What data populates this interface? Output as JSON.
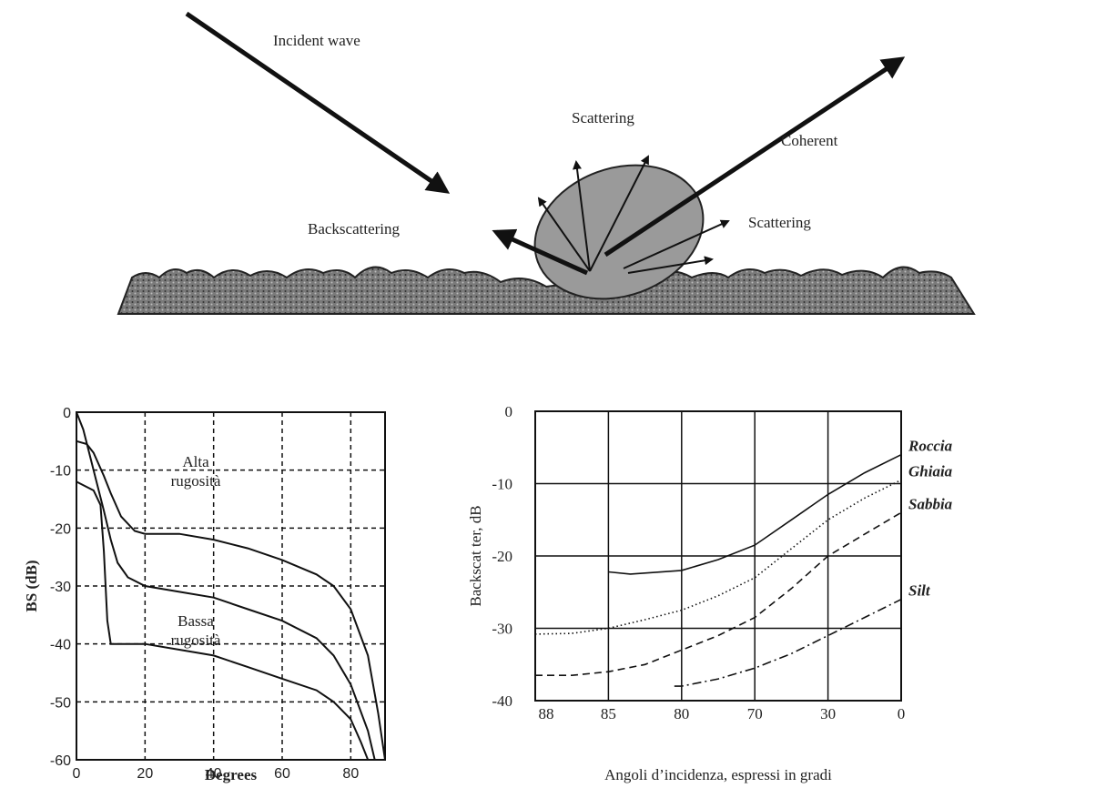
{
  "diagram": {
    "labels": [
      "Incident wave",
      "Scattering",
      "Coherent",
      "Backscattering",
      "Scattering"
    ]
  },
  "chart_data": [
    {
      "type": "line",
      "xlabel": "Degrees",
      "ylabel": "BS (dB)",
      "xlim": [
        0,
        90
      ],
      "xticks": [
        0,
        20,
        40,
        60,
        80
      ],
      "ylim": [
        -60,
        0
      ],
      "yticks": [
        0,
        -10,
        -20,
        -30,
        -40,
        -50,
        -60
      ],
      "grid": "dashed",
      "annotations": [
        [
          "Alta",
          "rugosità"
        ],
        [
          "Bassa",
          "rugosità"
        ]
      ],
      "series": [
        {
          "color": "#111111",
          "dash": "solid",
          "x": [
            0,
            2,
            5,
            8,
            10,
            12,
            15,
            20,
            30,
            40,
            50,
            60,
            70,
            75,
            80,
            85,
            87
          ],
          "values": [
            0,
            -3,
            -10,
            -17,
            -22,
            -26,
            -28.5,
            -30,
            -31,
            -32,
            -34,
            -36,
            -39,
            -42,
            -47,
            -55,
            -60
          ]
        },
        {
          "color": "#111111",
          "dash": "solid",
          "x": [
            0,
            3,
            5,
            8,
            10,
            13,
            17,
            20,
            30,
            40,
            50,
            60,
            70,
            75,
            80,
            85,
            88,
            90
          ],
          "values": [
            -5,
            -5.5,
            -7,
            -11,
            -14,
            -18,
            -20.5,
            -21,
            -21,
            -22,
            -23.5,
            -25.5,
            -28,
            -30,
            -34,
            -42,
            -52,
            -60
          ]
        },
        {
          "color": "#111111",
          "dash": "solid",
          "x": [
            0,
            5,
            7,
            8,
            9,
            10,
            20,
            30,
            40,
            50,
            60,
            70,
            75,
            80,
            83,
            85
          ],
          "values": [
            -12,
            -13.5,
            -16,
            -24,
            -36,
            -40,
            -40,
            -41,
            -42,
            -44,
            -46,
            -48,
            -50,
            -53,
            -57,
            -60
          ]
        }
      ]
    },
    {
      "type": "line",
      "xlabel": "Angoli d’incidenza, espressi in gradi",
      "ylabel": "Backscat ter, dB",
      "xlim": [
        88,
        0
      ],
      "xticks": [
        88,
        85,
        80,
        70,
        30,
        0
      ],
      "xscale": "piecewise",
      "ylim": [
        -40,
        0
      ],
      "yticks": [
        0,
        -10,
        -20,
        -30,
        -40
      ],
      "grid": "solid",
      "series": [
        {
          "name": "Roccia",
          "color": "#111111",
          "dash": "solid",
          "x": [
            85,
            83.5,
            80,
            75,
            70,
            50,
            30,
            15,
            0
          ],
          "values": [
            -22.2,
            -22.5,
            -22,
            -20.5,
            -18.5,
            -15,
            -11.5,
            -8.5,
            -6
          ]
        },
        {
          "name": "Ghiaia",
          "color": "#111111",
          "dash": "dotted",
          "x": [
            88,
            86.5,
            85,
            82.5,
            80,
            75,
            70,
            50,
            30,
            15,
            0
          ],
          "values": [
            -30.8,
            -30.7,
            -30,
            -28.8,
            -27.5,
            -25.5,
            -23,
            -19,
            -15,
            -12,
            -9.5
          ]
        },
        {
          "name": "Sabbia",
          "color": "#111111",
          "dash": "dashed",
          "x": [
            88,
            86.5,
            85,
            82.5,
            80,
            75,
            70,
            50,
            30,
            15,
            0
          ],
          "values": [
            -36.5,
            -36.5,
            -36,
            -35,
            -33,
            -31,
            -28.5,
            -24.5,
            -20,
            -17,
            -14
          ]
        },
        {
          "name": "Silt",
          "color": "#111111",
          "dash": "dashdot",
          "x": [
            80.5,
            80,
            75,
            70,
            50,
            30,
            15,
            0
          ],
          "values": [
            -38,
            -38,
            -37,
            -35.5,
            -33.5,
            -31,
            -28.5,
            -26
          ]
        }
      ]
    }
  ]
}
